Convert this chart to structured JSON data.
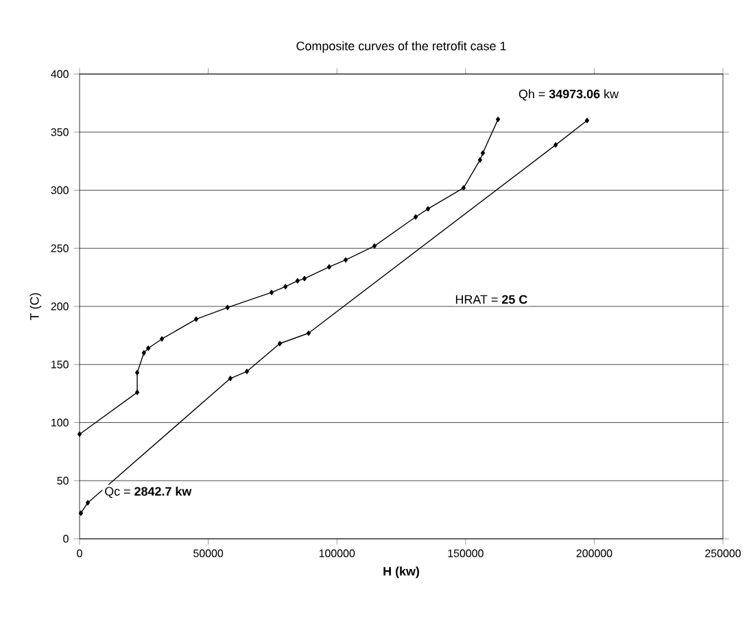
{
  "chart_data": {
    "type": "line",
    "title": "Composite curves of the retrofit case 1",
    "xlabel": "H (kw)",
    "ylabel": "T (C)",
    "xlim": [
      0,
      250000
    ],
    "xticks": [
      0,
      50000,
      100000,
      150000,
      200000,
      250000
    ],
    "ylim": [
      0,
      400
    ],
    "yticks": [
      0,
      50,
      100,
      150,
      200,
      250,
      300,
      350,
      400
    ],
    "grid": "y",
    "marker": "diamond",
    "line_style": "solid",
    "annotations": [
      "Qh = **34973.06** kw",
      "HRAT = **25 C**",
      "Qc = **2842.7 kw**"
    ],
    "series": [
      {
        "color": "#000000",
        "x": [
          0,
          22400,
          22400,
          25000,
          26700,
          32000,
          45300,
          57500,
          74600,
          80000,
          84700,
          87400,
          97000,
          103400,
          114600,
          130600,
          135400,
          149200,
          155600,
          156700,
          162600
        ],
        "values": [
          90,
          126,
          143,
          160,
          164,
          172,
          189,
          199,
          212,
          217,
          222,
          224,
          234,
          240,
          252,
          277,
          284,
          302,
          326,
          332,
          361
        ]
      },
      {
        "color": "#000000",
        "x": [
          500,
          3200,
          58600,
          65000,
          77800,
          89000,
          185000,
          197200
        ],
        "values": [
          22,
          31,
          138,
          144,
          168,
          177,
          339,
          360
        ]
      }
    ]
  }
}
